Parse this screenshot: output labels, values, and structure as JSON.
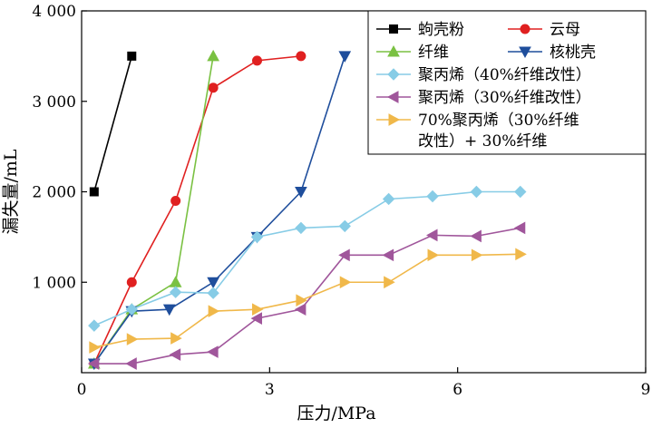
{
  "chart_data": {
    "type": "line",
    "xlabel": "压力/MPa",
    "ylabel": "漏失量/mL",
    "xlim": [
      0,
      9
    ],
    "ylim": [
      0,
      4000
    ],
    "xticks": [
      0,
      3,
      6,
      9
    ],
    "yticks": [
      1000,
      2000,
      3000,
      4000
    ],
    "xtick_labels": [
      "0",
      "3",
      "6",
      "9"
    ],
    "ytick_labels": [
      "1 000",
      "2 000",
      "3 000",
      "4 000"
    ],
    "legend_position": "top-right",
    "grid": false,
    "series": [
      {
        "name": "蚼壳粉",
        "color": "#000000",
        "marker": "square",
        "x": [
          0.2,
          0.8
        ],
        "y": [
          2000,
          3500
        ]
      },
      {
        "name": "云母",
        "color": "#e02020",
        "marker": "circle",
        "x": [
          0.2,
          0.8,
          1.5,
          2.1,
          2.8,
          3.5
        ],
        "y": [
          100,
          1000,
          1900,
          3150,
          3450,
          3500
        ]
      },
      {
        "name": "纤维",
        "color": "#7ac142",
        "marker": "triangle-up",
        "x": [
          0.2,
          0.8,
          1.5,
          2.1
        ],
        "y": [
          100,
          700,
          1000,
          3500
        ]
      },
      {
        "name": "核桃壳",
        "color": "#1f4e9c",
        "marker": "triangle-down",
        "x": [
          0.2,
          0.8,
          1.4,
          2.1,
          2.8,
          3.5,
          4.2
        ],
        "y": [
          100,
          680,
          700,
          1000,
          1500,
          2000,
          3500
        ]
      },
      {
        "name": "聚丙烯（40%纤维改性）",
        "color": "#87cce6",
        "marker": "diamond",
        "x": [
          0.2,
          0.8,
          1.5,
          2.1,
          2.8,
          3.5,
          4.2,
          4.9,
          5.6,
          6.3,
          7.0
        ],
        "y": [
          520,
          700,
          890,
          880,
          1500,
          1600,
          1620,
          1920,
          1950,
          2000,
          2000
        ]
      },
      {
        "name": "聚丙烯（30%纤维改性）",
        "color": "#a0569b",
        "marker": "triangle-left",
        "x": [
          0.2,
          0.8,
          1.5,
          2.1,
          2.8,
          3.5,
          4.2,
          4.9,
          5.6,
          6.3,
          7.0
        ],
        "y": [
          100,
          100,
          200,
          230,
          600,
          700,
          1300,
          1300,
          1520,
          1510,
          1600
        ]
      },
      {
        "name": "70%聚丙烯（30%纤维改性）+ 30%纤维",
        "name_lines": [
          "70%聚丙烯（30%纤维",
          "改性）+ 30%纤维"
        ],
        "color": "#f0b84a",
        "marker": "triangle-right",
        "x": [
          0.2,
          0.8,
          1.5,
          2.1,
          2.8,
          3.5,
          4.2,
          4.9,
          5.6,
          6.3,
          7.0
        ],
        "y": [
          280,
          370,
          380,
          680,
          700,
          800,
          1000,
          1000,
          1300,
          1300,
          1310
        ]
      }
    ]
  }
}
